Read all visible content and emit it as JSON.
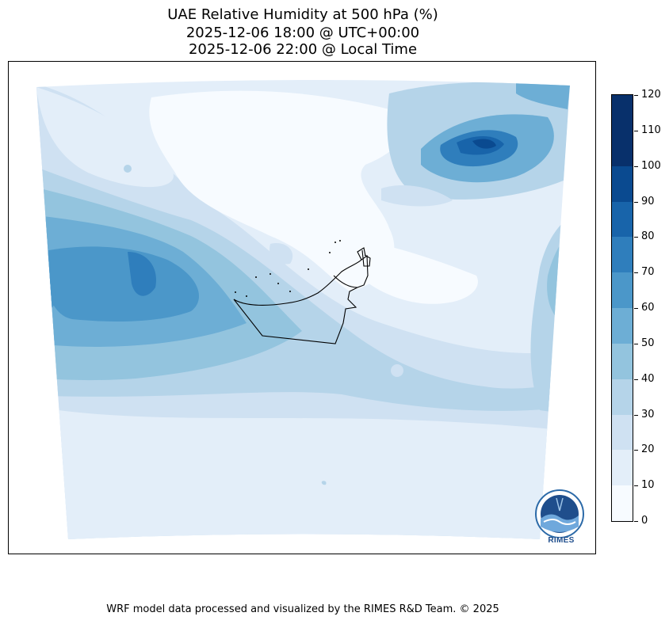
{
  "title": {
    "line1": "UAE Relative Humidity at 500 hPa (%)",
    "line2": "2025-12-06 18:00 @ UTC+00:00",
    "line3": "2025-12-06 22:00 @ Local Time"
  },
  "colorbar": {
    "levels": [
      0,
      10,
      20,
      30,
      40,
      50,
      60,
      70,
      80,
      90,
      100,
      110,
      120
    ],
    "labels": [
      "0",
      "10",
      "20",
      "30",
      "40",
      "50",
      "60",
      "70",
      "80",
      "90",
      "100",
      "110",
      "120"
    ],
    "colors": [
      "#f7fbff",
      "#e3eef9",
      "#cfe1f2",
      "#b5d4e9",
      "#93c4de",
      "#6daed5",
      "#4b97c9",
      "#2f7ebc",
      "#1864aa",
      "#0a4a90",
      "#08306b",
      "#08306b"
    ]
  },
  "logo": {
    "name": "RIMES"
  },
  "footer": {
    "credit": "WRF model data processed and visualized by the RIMES R&D Team. © 2025"
  }
}
